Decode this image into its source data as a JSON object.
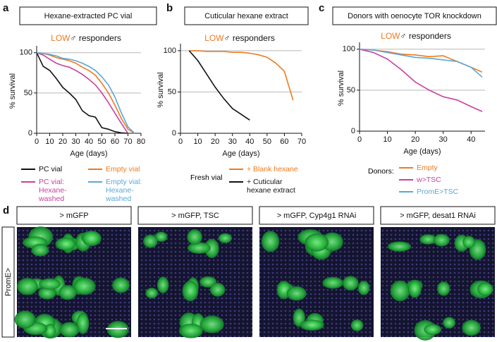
{
  "chart_data": [
    {
      "type": "line",
      "panel": "a",
      "title": "Hexane-extracted PC vial",
      "subtitle_highlight": "LOW",
      "subtitle": "♂ responders",
      "xlabel": "Age (days)",
      "ylabel": "% survival",
      "x": [
        0,
        5,
        10,
        15,
        20,
        25,
        30,
        35,
        40,
        45,
        50,
        55,
        60,
        65,
        70,
        75
      ],
      "xlim": [
        0,
        80
      ],
      "xticks": [
        0,
        10,
        20,
        30,
        40,
        50,
        60,
        70,
        80
      ],
      "ylim": [
        0,
        105
      ],
      "yticks": [
        0,
        50,
        100
      ],
      "grid": true,
      "series": [
        {
          "name": "PC vial",
          "color": "#111111",
          "values": [
            100,
            83,
            78,
            68,
            57,
            50,
            42,
            28,
            22,
            20,
            7,
            5,
            2,
            0.5,
            0,
            null
          ]
        },
        {
          "name": "PC vial: Hexane-washed",
          "color": "#c8409e",
          "values": [
            100,
            97,
            92,
            87,
            84,
            82,
            78,
            73,
            67,
            60,
            50,
            38,
            25,
            12,
            0,
            null
          ]
        },
        {
          "name": "Empty vial",
          "color": "#f07a1e",
          "values": [
            100,
            99,
            97,
            94,
            92,
            90,
            87,
            82,
            78,
            72,
            62,
            50,
            35,
            18,
            5,
            0
          ]
        },
        {
          "name": "Empty vial: Hexane-washed",
          "color": "#5aa7d8",
          "values": [
            100,
            99,
            98,
            96,
            93,
            92,
            90,
            87,
            83,
            78,
            70,
            60,
            45,
            25,
            8,
            0
          ]
        }
      ]
    },
    {
      "type": "line",
      "panel": "b",
      "title": "Cuticular hexane extract",
      "subtitle_highlight": "LOW",
      "subtitle": "♂ responders",
      "xlabel": "Age (days)",
      "ylabel": "% survival",
      "legend_title": "Fresh vial",
      "x": [
        0,
        5,
        10,
        15,
        20,
        25,
        30,
        35,
        40,
        45,
        50,
        55,
        60,
        65
      ],
      "xlim": [
        0,
        70
      ],
      "xticks": [
        0,
        10,
        20,
        30,
        40,
        50,
        60,
        70
      ],
      "ylim": [
        0,
        105
      ],
      "yticks": [
        0,
        50,
        100
      ],
      "grid": true,
      "series": [
        {
          "name": "+ Blank hexane",
          "color": "#f07a1e",
          "values": [
            null,
            100,
            100,
            99,
            99,
            99,
            98,
            98,
            97,
            95,
            92,
            85,
            75,
            40
          ]
        },
        {
          "name": "+ Cuticular hexane extract",
          "color": "#111111",
          "values": [
            null,
            100,
            88,
            72,
            56,
            42,
            30,
            23,
            16,
            null,
            null,
            null,
            null,
            null
          ]
        }
      ]
    },
    {
      "type": "line",
      "panel": "c",
      "title": "Donors with oenocyte TOR knockdown",
      "subtitle_highlight": "LOW",
      "subtitle": "♂ responders",
      "xlabel": "Age (days)",
      "ylabel": "% survival",
      "legend_title": "Donors:",
      "x": [
        0,
        5,
        10,
        15,
        20,
        25,
        30,
        35,
        40,
        44
      ],
      "xlim": [
        0,
        45
      ],
      "xticks": [
        0,
        10,
        20,
        30,
        40
      ],
      "ylim": [
        0,
        105
      ],
      "yticks": [
        0,
        50,
        100
      ],
      "grid": true,
      "series": [
        {
          "name": "Empty",
          "color": "#f07a1e",
          "values": [
            100,
            99,
            97,
            94,
            93,
            91,
            92,
            85,
            78,
            72
          ]
        },
        {
          "name": "w>TSC",
          "color": "#c8409e",
          "values": [
            100,
            96,
            88,
            75,
            60,
            50,
            42,
            38,
            30,
            24
          ]
        },
        {
          "name": "PromE>TSC",
          "color": "#5aa7d8",
          "values": [
            100,
            99,
            96,
            93,
            90,
            89,
            87,
            85,
            78,
            66
          ]
        }
      ]
    }
  ],
  "panel_d": {
    "panel": "d",
    "row_label": "PromE>",
    "images": [
      {
        "title": "> mGFP"
      },
      {
        "title": "> mGFP, TSC"
      },
      {
        "title": "> mGFP, Cyp4g1 RNAi"
      },
      {
        "title": "> mGFP, desat1 RNAi"
      }
    ]
  }
}
